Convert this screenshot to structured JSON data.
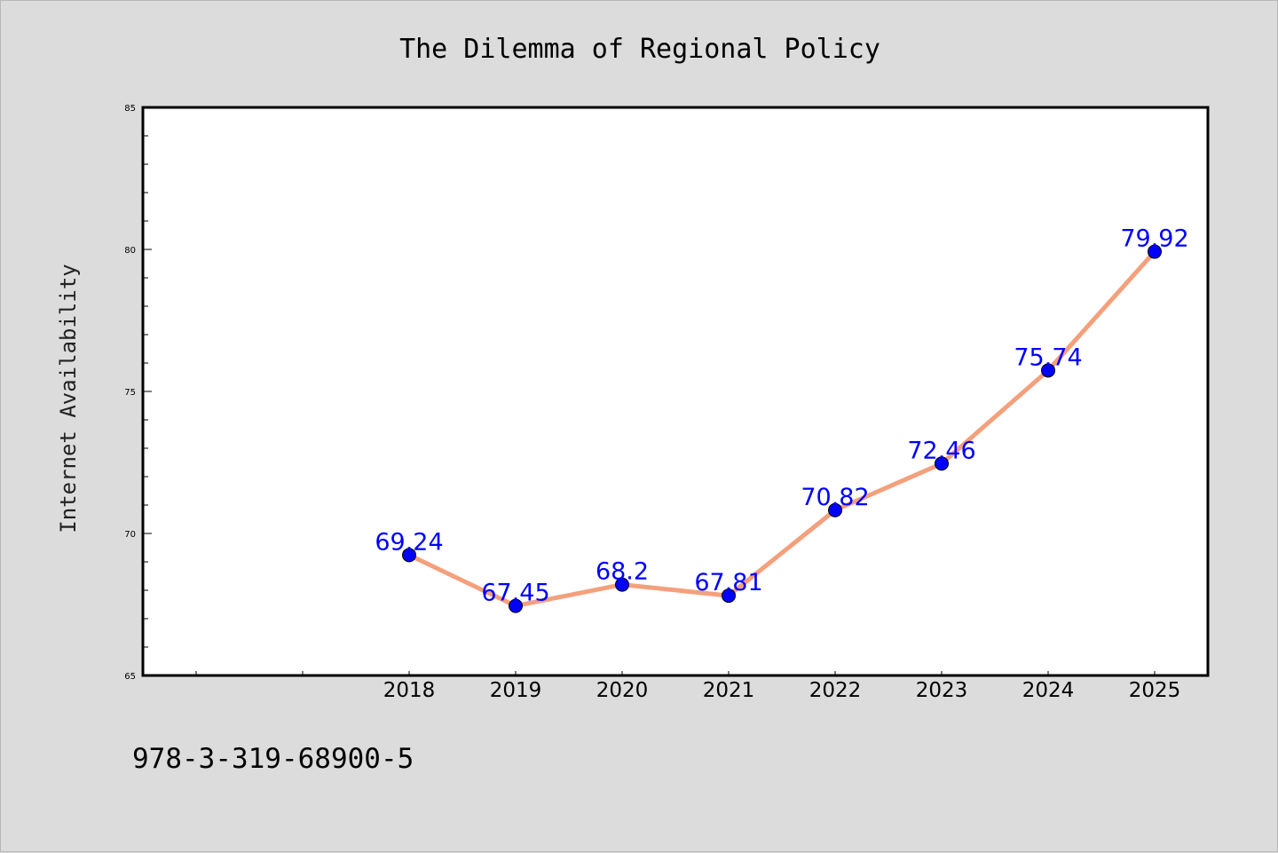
{
  "chart_data": {
    "type": "line",
    "title": "The Dilemma of Regional Policy",
    "xlabel": "",
    "ylabel": "Internet Availability",
    "categories": [
      "2018",
      "2019",
      "2020",
      "2021",
      "2022",
      "2023",
      "2024",
      "2025"
    ],
    "series": [
      {
        "values": [
          69.24,
          67.45,
          68.2,
          67.81,
          70.82,
          72.46,
          75.74,
          79.92
        ]
      }
    ],
    "data_labels": [
      "69.24",
      "67.45",
      "68.2",
      "67.81",
      "70.82",
      "72.46",
      "75.74",
      "79.92"
    ],
    "ylim": [
      65,
      85
    ],
    "yticks": [
      "65",
      "70",
      "75",
      "80",
      "85"
    ],
    "grid": false,
    "colors": {
      "line": "#f4a07c",
      "marker": "#0000ff",
      "label": "#0000ff",
      "background": "#dcdcdc",
      "plot_area": "#ffffff"
    }
  },
  "footer": {
    "isbn": "978-3-319-68900-5"
  }
}
